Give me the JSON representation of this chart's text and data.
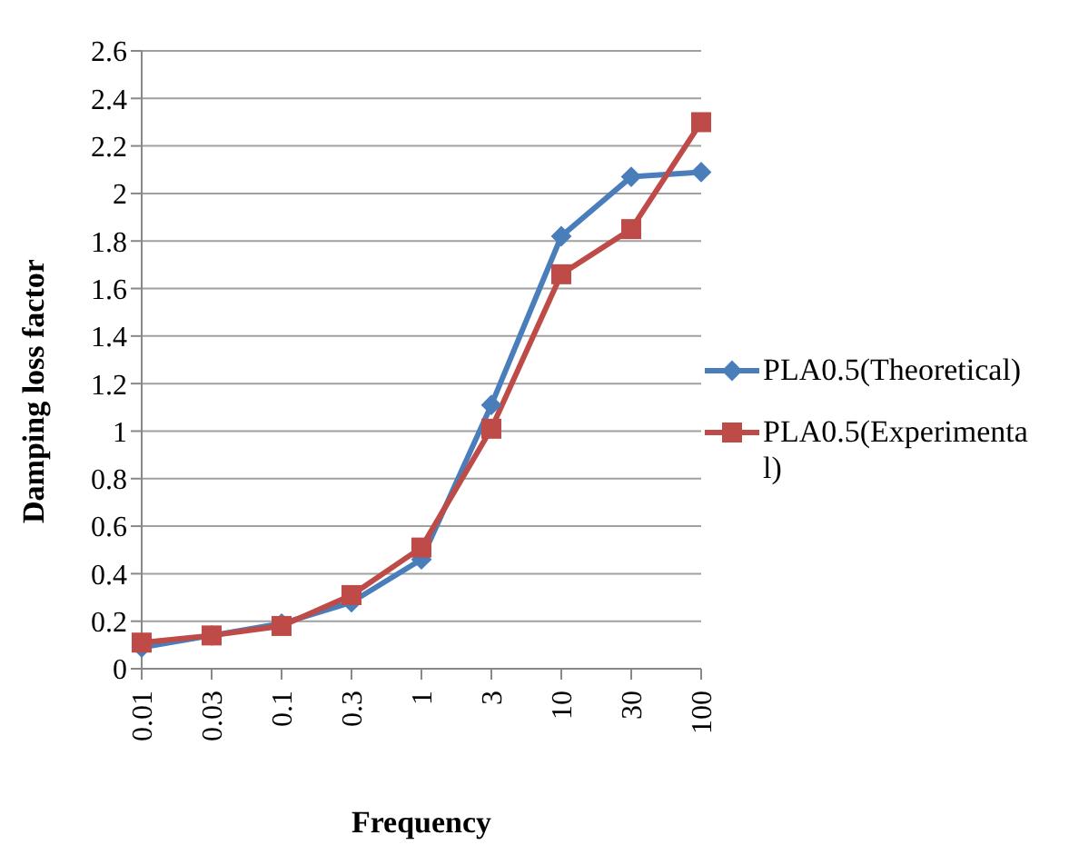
{
  "chart_data": {
    "type": "line",
    "xlabel": "Frequency",
    "ylabel": "Damping loss factor",
    "categories": [
      "0.01",
      "0.03",
      "0.1",
      "0.3",
      "1",
      "3",
      "10",
      "30",
      "100"
    ],
    "series": [
      {
        "name": "PLA0.5(Theoretical)",
        "color": "#4a7ebb",
        "marker": "diamond",
        "values": [
          0.09,
          0.14,
          0.19,
          0.28,
          0.46,
          1.11,
          1.82,
          2.07,
          2.09
        ]
      },
      {
        "name": "PLA0.5(Experimental)",
        "color": "#be4b48",
        "marker": "square",
        "values": [
          0.11,
          0.14,
          0.18,
          0.31,
          0.51,
          1.01,
          1.66,
          1.85,
          2.3
        ]
      }
    ],
    "ylim": [
      0,
      2.6
    ],
    "yticks": [
      0,
      0.2,
      0.4,
      0.6,
      0.8,
      1,
      1.2,
      1.4,
      1.6,
      1.8,
      2,
      2.2,
      2.4,
      2.6
    ],
    "grid": "y",
    "legend": "right"
  }
}
